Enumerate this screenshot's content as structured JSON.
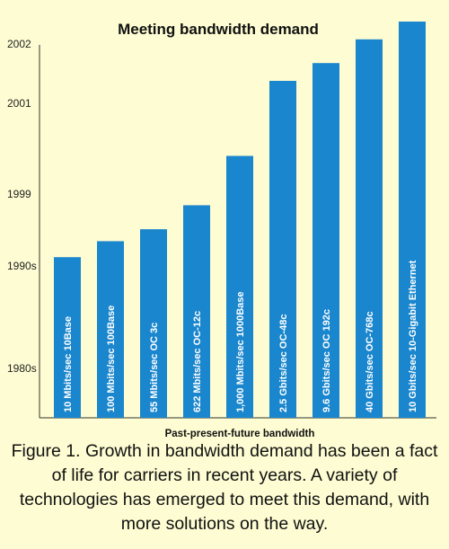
{
  "chart_data": {
    "type": "bar",
    "title": "Meeting bandwidth demand",
    "xlabel": "Past-present-future bandwidth",
    "ylabel": "",
    "y_ticks": [
      "1980s",
      "1990s",
      "1999",
      "2001",
      "2002"
    ],
    "categories": [
      "10 Mbits/sec 10Base",
      "100 Mbits/sec 100Base",
      "55 Mbits/sec OC 3c",
      "622 Mbits/sec OC-12c",
      "1,000 Mbits/sec 1000Base",
      "2.5 Gbits/sec OC-48c",
      "9.6 Gbits/sec OC 192c",
      "40 Gbits/sec OC-768c",
      "10 Gbits/sec 10-Gigabit Ethernet"
    ],
    "values": [
      1992,
      1994,
      1995.5,
      1998.5,
      2000,
      2001.5,
      2001.8,
      2002.2,
      2002.5
    ],
    "bar_color": "#1a86cd",
    "label_color": "#ffffff",
    "grid": false
  },
  "caption": {
    "lines": [
      "Figure 1. Growth in bandwidth demand has been a fact",
      "of life for carriers in recent years. A variety of",
      "technologies has emerged to meet this demand, with",
      "more solutions on the way."
    ]
  }
}
